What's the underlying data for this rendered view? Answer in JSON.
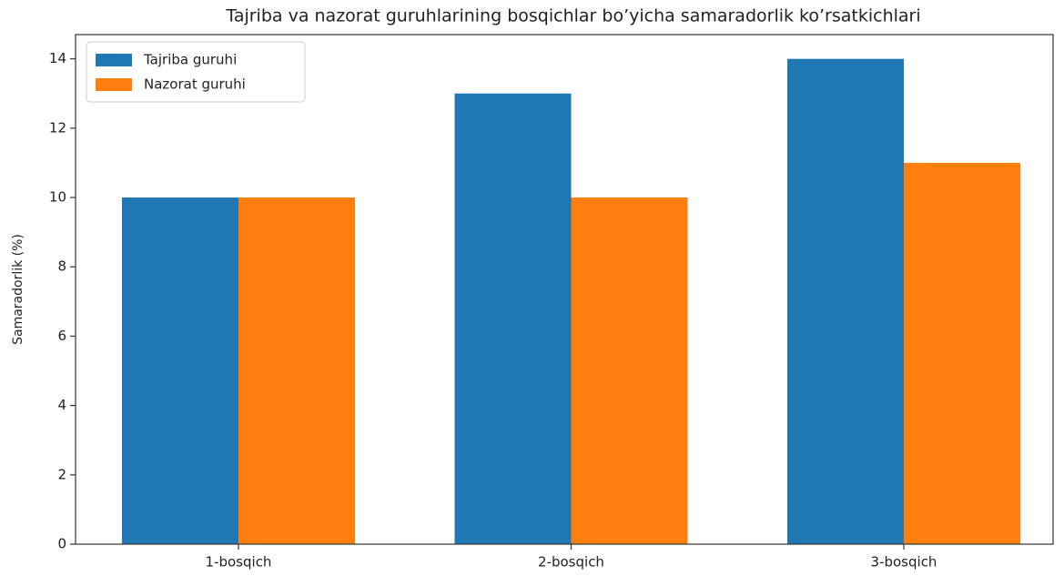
{
  "chart_data": {
    "type": "bar",
    "title": "Tajriba va nazorat guruhlarining bosqichlar bo’yicha samaradorlik ko’rsatkichlari",
    "y_label": "Samaradorlik (%)",
    "categories": [
      "1-bosqich",
      "2-bosqich",
      "3-bosqich"
    ],
    "series": [
      {
        "name": "Tajriba guruhi",
        "color": "#1f77b4",
        "values": [
          10,
          13,
          14
        ]
      },
      {
        "name": "Nazorat guruhi",
        "color": "#ff7f0e",
        "values": [
          10,
          10,
          11
        ]
      }
    ],
    "ylim": [
      0,
      14.7
    ],
    "yticks": [
      0,
      2,
      4,
      6,
      8,
      10,
      12,
      14
    ],
    "grid": false,
    "legend": "upper left"
  }
}
